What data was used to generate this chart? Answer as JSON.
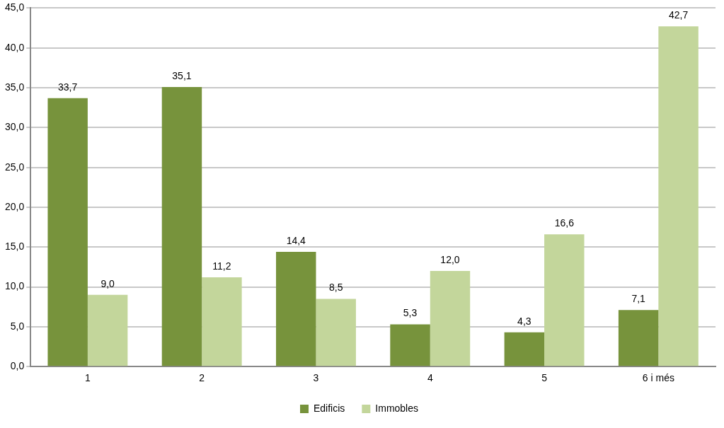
{
  "chart_data": {
    "type": "bar",
    "categories": [
      "1",
      "2",
      "3",
      "4",
      "5",
      "6 i més"
    ],
    "series": [
      {
        "name": "Edificis",
        "color": "#77933c",
        "values": [
          33.7,
          35.1,
          14.4,
          5.3,
          4.3,
          7.1
        ],
        "value_labels": [
          "33,7",
          "35,1",
          "14,4",
          "5,3",
          "4,3",
          "7,1"
        ]
      },
      {
        "name": "Immobles",
        "color": "#c3d69b",
        "values": [
          9.0,
          11.2,
          8.5,
          12.0,
          16.6,
          42.7
        ],
        "value_labels": [
          "9,0",
          "11,2",
          "8,5",
          "12,0",
          "16,6",
          "42,7"
        ]
      }
    ],
    "ylim": [
      0,
      45
    ],
    "yticks": [
      {
        "value": 0,
        "label": "0,0"
      },
      {
        "value": 5,
        "label": "5,0"
      },
      {
        "value": 10,
        "label": "10,0"
      },
      {
        "value": 15,
        "label": "15,0"
      },
      {
        "value": 20,
        "label": "20,0"
      },
      {
        "value": 25,
        "label": "25,0"
      },
      {
        "value": 30,
        "label": "30,0"
      },
      {
        "value": 35,
        "label": "35,0"
      },
      {
        "value": 40,
        "label": "40,0"
      },
      {
        "value": 45,
        "label": "45,0"
      }
    ],
    "grid": "y",
    "legend": "bottom"
  }
}
